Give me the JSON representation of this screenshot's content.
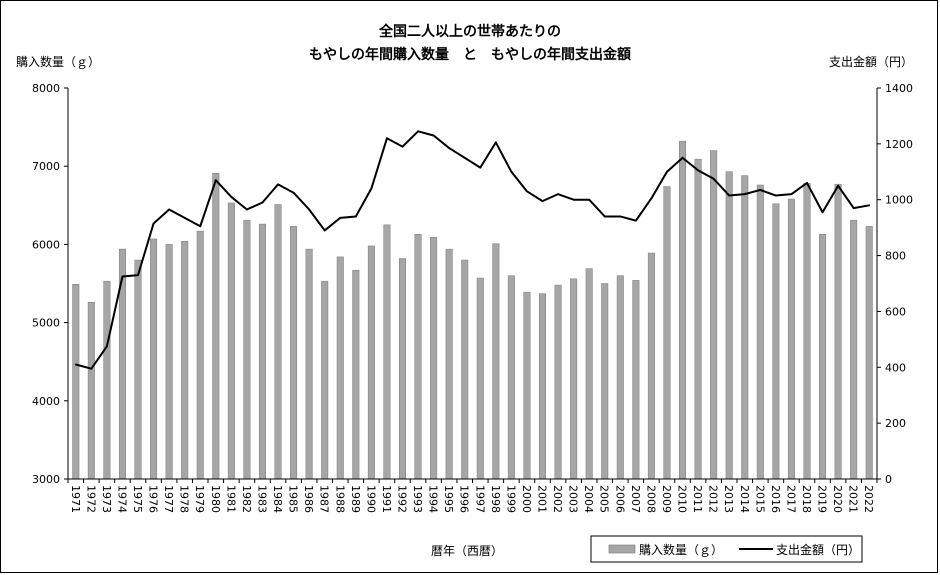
{
  "chart_data": {
    "type": "bar+line",
    "title_line1": "全国二人以上の世帯あたりの",
    "title_line2": "もやしの年間購入数量　と　もやしの年間支出金額",
    "left_axis_label": "購入数量（ｇ）",
    "right_axis_label": "支出金額（円）",
    "xlabel": "暦年（西暦）",
    "ylim_left": [
      3000,
      8000
    ],
    "yticks_left": [
      "3000",
      "4000",
      "5000",
      "6000",
      "7000",
      "8000"
    ],
    "ylim_right": [
      0,
      1400
    ],
    "yticks_right": [
      "0",
      "200",
      "400",
      "600",
      "800",
      "1000",
      "1200",
      "1400"
    ],
    "legend_position": "bottom-right",
    "grid": false,
    "categories": [
      "1971",
      "1972",
      "1973",
      "1974",
      "1975",
      "1976",
      "1977",
      "1978",
      "1979",
      "1980",
      "1981",
      "1982",
      "1983",
      "1984",
      "1985",
      "1986",
      "1987",
      "1988",
      "1989",
      "1990",
      "1991",
      "1992",
      "1993",
      "1994",
      "1995",
      "1996",
      "1997",
      "1998",
      "1999",
      "2000",
      "2001",
      "2002",
      "2003",
      "2004",
      "2005",
      "2006",
      "2007",
      "2008",
      "2009",
      "2010",
      "2011",
      "2012",
      "2013",
      "2014",
      "2015",
      "2016",
      "2017",
      "2018",
      "2019",
      "2020",
      "2021",
      "2022"
    ],
    "series": [
      {
        "name": "購入数量（ｇ）",
        "type": "bar",
        "axis": "left",
        "color": "#a6a6a6",
        "values": [
          5490,
          5260,
          5530,
          5940,
          5800,
          6070,
          6000,
          6040,
          6170,
          6910,
          6530,
          6310,
          6260,
          6510,
          6230,
          5940,
          5530,
          5840,
          5670,
          5980,
          6250,
          5820,
          6130,
          6090,
          5940,
          5800,
          5570,
          6010,
          5600,
          5390,
          5370,
          5480,
          5560,
          5690,
          5500,
          5600,
          5540,
          5890,
          6740,
          7320,
          7090,
          7200,
          6930,
          6880,
          6760,
          6520,
          6580,
          6780,
          6130,
          6770,
          6310,
          6230
        ]
      },
      {
        "name": "支出金額（円）",
        "type": "line",
        "axis": "right",
        "color": "#000000",
        "values": [
          410,
          395,
          475,
          725,
          730,
          915,
          965,
          935,
          905,
          1070,
          1010,
          965,
          990,
          1055,
          1025,
          965,
          890,
          935,
          940,
          1040,
          1220,
          1190,
          1245,
          1230,
          1185,
          1150,
          1115,
          1205,
          1100,
          1030,
          995,
          1020,
          1000,
          1000,
          940,
          940,
          925,
          1005,
          1100,
          1150,
          1105,
          1075,
          1015,
          1020,
          1035,
          1015,
          1020,
          1060,
          955,
          1050,
          970,
          980
        ]
      }
    ]
  }
}
